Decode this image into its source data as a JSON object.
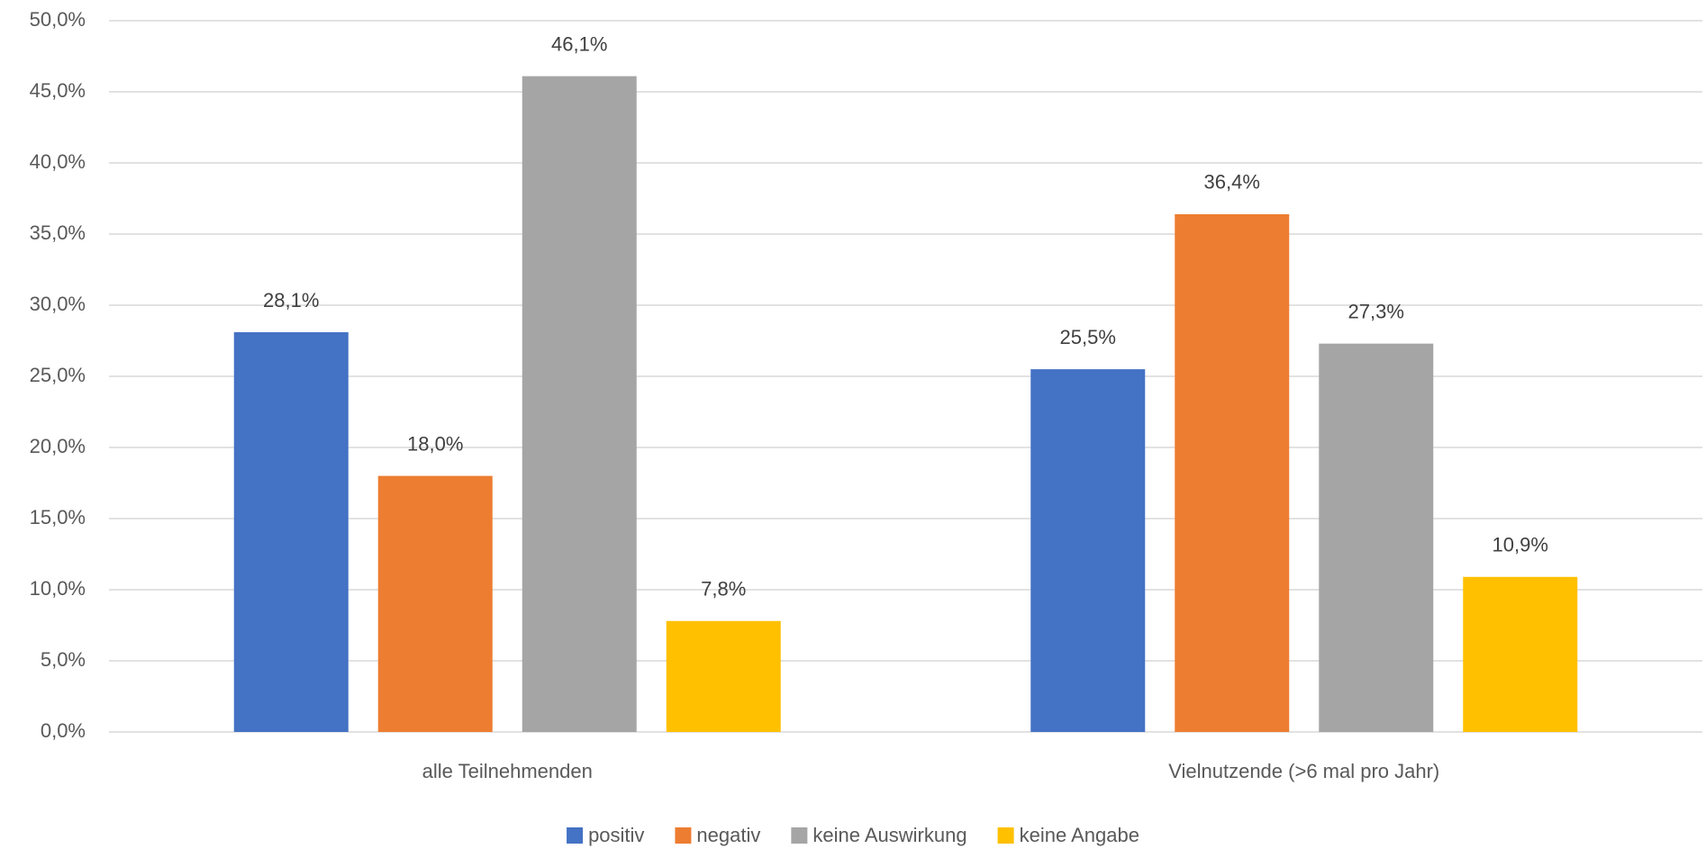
{
  "chart_data": {
    "type": "bar",
    "categories": [
      "alle Teilnehmenden",
      "Vielnutzende (>6 mal pro Jahr)"
    ],
    "series": [
      {
        "name": "positiv",
        "color": "#4472c4",
        "values": [
          28.1,
          25.5
        ],
        "value_labels": [
          "28,1%",
          "25,5%"
        ]
      },
      {
        "name": "negativ",
        "color": "#ed7d31",
        "values": [
          18.0,
          36.4
        ],
        "value_labels": [
          "18,0%",
          "36,4%"
        ]
      },
      {
        "name": "keine Auswirkung",
        "color": "#a5a5a5",
        "values": [
          46.1,
          27.3
        ],
        "value_labels": [
          "46,1%",
          "27,3%"
        ]
      },
      {
        "name": "keine Angabe",
        "color": "#ffc000",
        "values": [
          7.8,
          10.9
        ],
        "value_labels": [
          "7,8%",
          "10,9%"
        ]
      }
    ],
    "ylim": [
      0,
      50
    ],
    "yticks": [
      {
        "value": 0,
        "label": "0,0%"
      },
      {
        "value": 5,
        "label": "5,0%"
      },
      {
        "value": 10,
        "label": "10,0%"
      },
      {
        "value": 15,
        "label": "15,0%"
      },
      {
        "value": 20,
        "label": "20,0%"
      },
      {
        "value": 25,
        "label": "25,0%"
      },
      {
        "value": 30,
        "label": "30,0%"
      },
      {
        "value": 35,
        "label": "35,0%"
      },
      {
        "value": 40,
        "label": "40,0%"
      },
      {
        "value": 45,
        "label": "45,0%"
      },
      {
        "value": 50,
        "label": "50,0%"
      }
    ],
    "grid": true,
    "legend": "bottom"
  }
}
